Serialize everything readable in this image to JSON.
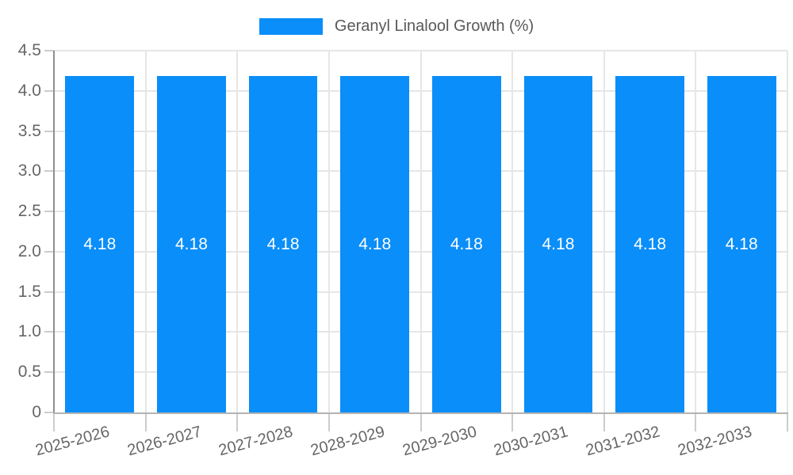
{
  "chart_data": {
    "type": "bar",
    "title": "Geranyl Linalool Growth (%)",
    "legend": {
      "label": "Geranyl Linalool Growth (%)",
      "position": "top"
    },
    "categories": [
      "2025-2026",
      "2026-2027",
      "2027-2028",
      "2028-2029",
      "2029-2030",
      "2030-2031",
      "2031-2032",
      "2032-2033"
    ],
    "values": [
      4.18,
      4.18,
      4.18,
      4.18,
      4.18,
      4.18,
      4.18,
      4.18
    ],
    "bar_labels": [
      "4.18",
      "4.18",
      "4.18",
      "4.18",
      "4.18",
      "4.18",
      "4.18",
      "4.18"
    ],
    "xlabel": "",
    "ylabel": "",
    "ylim": [
      0,
      4.5
    ],
    "ytick_step": 0.5,
    "ytick_labels": [
      "0",
      "0.5",
      "1.0",
      "1.5",
      "2.0",
      "2.5",
      "3.0",
      "3.5",
      "4.0",
      "4.5"
    ],
    "grid": true,
    "x_label_rotation_deg": -15,
    "bar_width_fraction": 0.75,
    "colors": {
      "bar": "#0a8ef9",
      "bar_label": "#ffffff",
      "grid": "#e6e6e6",
      "axis_y_line": "#8f8f8f",
      "axis_x_line": "#b3b3b3",
      "tick": "#cccccc",
      "tick_label": "#666666",
      "legend_text": "#595959",
      "background": "#ffffff"
    }
  }
}
